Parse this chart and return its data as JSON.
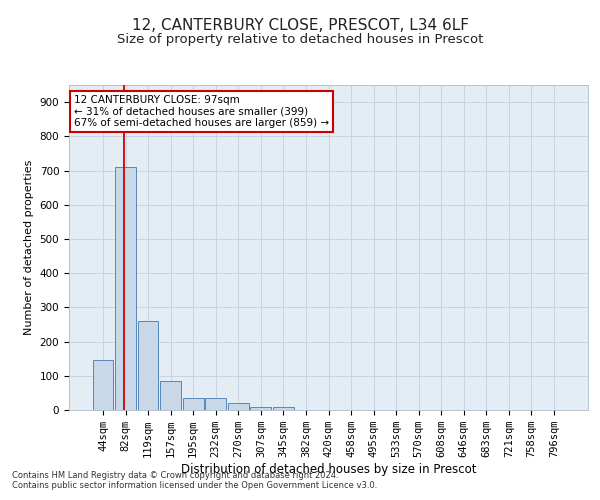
{
  "title": "12, CANTERBURY CLOSE, PRESCOT, L34 6LF",
  "subtitle": "Size of property relative to detached houses in Prescot",
  "xlabel": "Distribution of detached houses by size in Prescot",
  "ylabel": "Number of detached properties",
  "footnote1": "Contains HM Land Registry data © Crown copyright and database right 2024.",
  "footnote2": "Contains public sector information licensed under the Open Government Licence v3.0.",
  "categories": [
    "44sqm",
    "82sqm",
    "119sqm",
    "157sqm",
    "195sqm",
    "232sqm",
    "270sqm",
    "307sqm",
    "345sqm",
    "382sqm",
    "420sqm",
    "458sqm",
    "495sqm",
    "533sqm",
    "570sqm",
    "608sqm",
    "646sqm",
    "683sqm",
    "721sqm",
    "758sqm",
    "796sqm"
  ],
  "values": [
    145,
    710,
    260,
    85,
    35,
    35,
    20,
    10,
    10,
    0,
    0,
    0,
    0,
    0,
    0,
    0,
    0,
    0,
    0,
    0,
    0
  ],
  "bar_color": "#c8d8e8",
  "bar_edge_color": "#5588bb",
  "red_line_color": "#cc0000",
  "annotation_text": "12 CANTERBURY CLOSE: 97sqm\n← 31% of detached houses are smaller (399)\n67% of semi-detached houses are larger (859) →",
  "annotation_box_color": "#ffffff",
  "annotation_box_edge": "#cc0000",
  "ylim": [
    0,
    950
  ],
  "yticks": [
    0,
    100,
    200,
    300,
    400,
    500,
    600,
    700,
    800,
    900
  ],
  "grid_color": "#c8d4e4",
  "bg_color": "#e4ecf4",
  "title_fontsize": 11,
  "subtitle_fontsize": 9.5,
  "ylabel_fontsize": 8,
  "xlabel_fontsize": 8.5,
  "tick_fontsize": 7.5,
  "ann_fontsize": 7.5,
  "footnote_fontsize": 6.0
}
